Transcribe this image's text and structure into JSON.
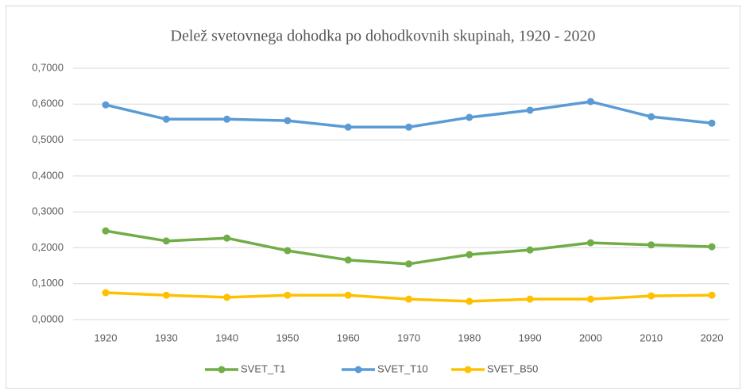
{
  "chart_data": {
    "type": "line",
    "title": "Delež svetovnega dohodka po dohodkovnih skupinah, 1920 - 2020",
    "categories": [
      "1920",
      "1930",
      "1940",
      "1950",
      "1960",
      "1970",
      "1980",
      "1990",
      "2000",
      "2010",
      "2020"
    ],
    "series": [
      {
        "name": "SVET_T1",
        "color": "#70ad47",
        "values": [
          0.247,
          0.219,
          0.227,
          0.192,
          0.166,
          0.155,
          0.181,
          0.194,
          0.214,
          0.208,
          0.203
        ]
      },
      {
        "name": "SVET_T10",
        "color": "#5b9bd5",
        "values": [
          0.598,
          0.558,
          0.558,
          0.554,
          0.536,
          0.536,
          0.563,
          0.583,
          0.607,
          0.565,
          0.547
        ]
      },
      {
        "name": "SVET_B50",
        "color": "#ffc000",
        "values": [
          0.075,
          0.068,
          0.062,
          0.068,
          0.068,
          0.057,
          0.051,
          0.057,
          0.057,
          0.066,
          0.068
        ]
      }
    ],
    "ylim": [
      0,
      0.7
    ],
    "yticks": [
      {
        "value": 0,
        "label": "0,0000"
      },
      {
        "value": 0.1,
        "label": "0,1000"
      },
      {
        "value": 0.2,
        "label": "0,2000"
      },
      {
        "value": 0.3,
        "label": "0,3000"
      },
      {
        "value": 0.4,
        "label": "0,4000"
      },
      {
        "value": 0.5,
        "label": "0,5000"
      },
      {
        "value": 0.6,
        "label": "0,6000"
      },
      {
        "value": 0.7,
        "label": "0,7000"
      }
    ],
    "grid": true,
    "legend": "bottom"
  }
}
